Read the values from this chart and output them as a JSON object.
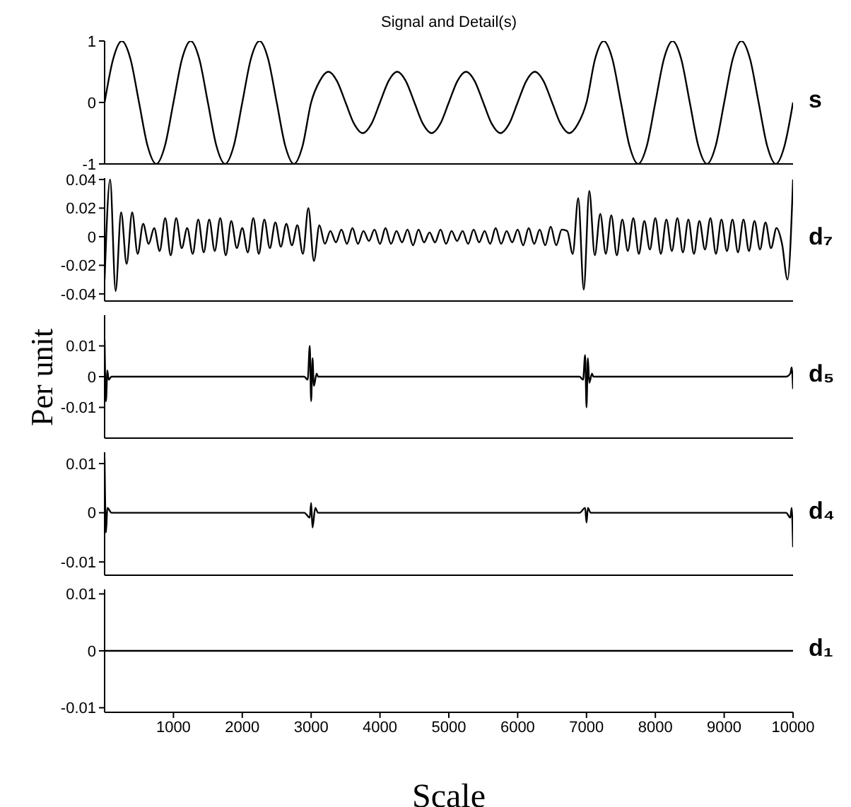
{
  "chart_data": [
    {
      "type": "line",
      "title": "Signal and Detail(s)",
      "xlim": [
        0,
        10000
      ],
      "xticks": [
        1000,
        2000,
        3000,
        4000,
        5000,
        6000,
        7000,
        8000,
        9000,
        10000
      ],
      "ylim": [
        -1,
        1
      ],
      "yticks": [
        -1,
        0,
        1
      ],
      "tick_labels": "y",
      "x": [
        0,
        125,
        250,
        375,
        500,
        625,
        750,
        875,
        1000,
        1125,
        1250,
        1375,
        1500,
        1625,
        1750,
        1875,
        2000,
        2125,
        2250,
        2375,
        2500,
        2625,
        2750,
        2875,
        3000,
        3125,
        3250,
        3375,
        3500,
        3625,
        3750,
        3875,
        4000,
        4125,
        4250,
        4375,
        4500,
        4625,
        4750,
        4875,
        5000,
        5125,
        5250,
        5375,
        5500,
        5625,
        5750,
        5875,
        6000,
        6125,
        6250,
        6375,
        6500,
        6625,
        6750,
        6875,
        7000,
        7125,
        7250,
        7375,
        7500,
        7625,
        7750,
        7875,
        8000,
        8125,
        8250,
        8375,
        8500,
        8625,
        8750,
        8875,
        9000,
        9125,
        9250,
        9375,
        9500,
        9625,
        9750,
        9875,
        10000
      ],
      "series": [
        {
          "name": "s",
          "color": "#000000",
          "values": [
            0,
            0.71,
            1,
            0.71,
            0,
            -0.71,
            -1,
            -0.71,
            0,
            0.71,
            1,
            0.71,
            0,
            -0.71,
            -1,
            -0.71,
            0,
            0.71,
            1,
            0.71,
            0,
            -0.71,
            -1,
            -0.71,
            0,
            0.35,
            0.5,
            0.35,
            0,
            -0.35,
            -0.5,
            -0.35,
            0,
            0.35,
            0.5,
            0.35,
            0,
            -0.35,
            -0.5,
            -0.35,
            0,
            0.35,
            0.5,
            0.35,
            0,
            -0.35,
            -0.5,
            -0.35,
            0,
            0.35,
            0.5,
            0.35,
            0,
            -0.35,
            -0.5,
            -0.35,
            0,
            0.71,
            1,
            0.71,
            0,
            -0.71,
            -1,
            -0.71,
            0,
            0.71,
            1,
            0.71,
            0,
            -0.71,
            -1,
            -0.71,
            0,
            0.71,
            1,
            0.71,
            0,
            -0.71,
            -1,
            -0.71,
            0
          ]
        }
      ]
    },
    {
      "type": "line",
      "xlim": [
        0,
        10000
      ],
      "xticks": [
        1000,
        2000,
        3000,
        4000,
        5000,
        6000,
        7000,
        8000,
        9000,
        10000
      ],
      "ylim": [
        -0.045,
        0.041
      ],
      "yticks": [
        -0.04,
        -0.02,
        0,
        0.02,
        0.04
      ],
      "tick_labels": "y",
      "x": [
        0,
        80,
        160,
        240,
        320,
        400,
        480,
        560,
        640,
        720,
        800,
        880,
        960,
        1040,
        1120,
        1200,
        1280,
        1360,
        1440,
        1520,
        1600,
        1680,
        1760,
        1840,
        1920,
        2000,
        2080,
        2160,
        2240,
        2320,
        2400,
        2480,
        2560,
        2640,
        2720,
        2800,
        2880,
        2960,
        3040,
        3120,
        3200,
        3280,
        3360,
        3440,
        3520,
        3600,
        3680,
        3760,
        3840,
        3920,
        4000,
        4080,
        4160,
        4240,
        4320,
        4400,
        4480,
        4560,
        4640,
        4720,
        4800,
        4880,
        4960,
        5040,
        5120,
        5200,
        5280,
        5360,
        5440,
        5520,
        5600,
        5680,
        5760,
        5840,
        5920,
        6000,
        6080,
        6160,
        6240,
        6320,
        6400,
        6480,
        6560,
        6640,
        6720,
        6800,
        6880,
        6960,
        7040,
        7120,
        7200,
        7280,
        7360,
        7440,
        7520,
        7600,
        7680,
        7760,
        7840,
        7920,
        8000,
        8080,
        8160,
        8240,
        8320,
        8400,
        8480,
        8560,
        8640,
        8720,
        8800,
        8880,
        8960,
        9040,
        9120,
        9200,
        9280,
        9360,
        9440,
        9520,
        9600,
        9680,
        9760,
        9840,
        9920,
        10000
      ],
      "series": [
        {
          "name": "d₇",
          "color": "#000000",
          "values": [
            -0.03,
            0.04,
            -0.038,
            0.017,
            -0.019,
            0.017,
            -0.012,
            0.009,
            -0.005,
            0.006,
            -0.01,
            0.013,
            -0.013,
            0.013,
            -0.008,
            0.006,
            -0.012,
            0.012,
            -0.011,
            0.012,
            -0.01,
            0.013,
            -0.013,
            0.011,
            -0.008,
            0.006,
            -0.011,
            0.013,
            -0.012,
            0.012,
            -0.008,
            0.01,
            -0.007,
            0.009,
            -0.006,
            0.008,
            -0.012,
            0.02,
            -0.017,
            0.008,
            -0.005,
            0.004,
            -0.004,
            0.005,
            -0.005,
            0.006,
            -0.005,
            0.004,
            -0.003,
            0.005,
            -0.005,
            0.006,
            -0.005,
            0.004,
            -0.004,
            0.005,
            -0.006,
            0.005,
            -0.004,
            0.003,
            -0.004,
            0.005,
            -0.005,
            0.004,
            -0.003,
            0.004,
            -0.005,
            0.005,
            -0.004,
            0.004,
            -0.005,
            0.006,
            -0.005,
            0.004,
            -0.004,
            0.005,
            -0.006,
            0.006,
            -0.005,
            0.005,
            -0.006,
            0.007,
            -0.006,
            0.005,
            0.004,
            -0.012,
            0.027,
            -0.037,
            0.032,
            -0.013,
            0.016,
            -0.012,
            0.015,
            -0.013,
            0.012,
            -0.01,
            0.013,
            -0.012,
            0.011,
            -0.009,
            0.013,
            -0.012,
            0.012,
            -0.01,
            0.013,
            -0.011,
            0.012,
            -0.012,
            0.011,
            -0.009,
            0.013,
            -0.012,
            0.012,
            -0.01,
            0.012,
            -0.011,
            0.012,
            -0.01,
            0.011,
            -0.009,
            0.01,
            -0.008,
            0.006,
            -0.005,
            -0.03,
            0.04
          ]
        }
      ]
    },
    {
      "type": "line",
      "ylabel": "Per unit",
      "xlim": [
        0,
        10000
      ],
      "xticks": [
        1000,
        2000,
        3000,
        4000,
        5000,
        6000,
        7000,
        8000,
        9000,
        10000
      ],
      "ylim": [
        -0.02,
        0.02
      ],
      "yticks": [
        -0.01,
        0,
        0.01
      ],
      "tick_labels": "y",
      "x": [
        0,
        20,
        40,
        60,
        100,
        200,
        2900,
        2950,
        2980,
        3000,
        3020,
        3040,
        3080,
        3100,
        3200,
        6900,
        6950,
        6980,
        7000,
        7020,
        7040,
        7080,
        7100,
        7200,
        9900,
        9960,
        9980,
        10000
      ],
      "series": [
        {
          "name": "d₅",
          "color": "#000000",
          "values": [
            0.012,
            -0.008,
            0.002,
            -0.001,
            0,
            0,
            0,
            -0.001,
            0.01,
            -0.008,
            0.006,
            -0.003,
            0.001,
            0,
            0,
            0,
            -0.001,
            0.007,
            -0.01,
            0.006,
            -0.002,
            0.001,
            0,
            0,
            0,
            0.001,
            0.003,
            -0.004
          ]
        }
      ]
    },
    {
      "type": "line",
      "xlim": [
        0,
        10000
      ],
      "xticks": [
        1000,
        2000,
        3000,
        4000,
        5000,
        6000,
        7000,
        8000,
        9000,
        10000
      ],
      "ylim": [
        -0.0127,
        0.0123
      ],
      "yticks": [
        -0.01,
        0,
        0.01
      ],
      "tick_labels": "y",
      "x": [
        0,
        20,
        40,
        100,
        2900,
        2980,
        3000,
        3020,
        3060,
        3100,
        6900,
        6980,
        7000,
        7020,
        7060,
        7100,
        9900,
        9960,
        9980,
        10000
      ],
      "series": [
        {
          "name": "d₄",
          "color": "#000000",
          "values": [
            0.011,
            -0.004,
            0.001,
            0,
            0,
            -0.001,
            0.002,
            -0.003,
            0.001,
            0,
            0,
            0.001,
            -0.002,
            0.001,
            0,
            0,
            0,
            -0.001,
            0.001,
            -0.007
          ]
        }
      ]
    },
    {
      "type": "line",
      "xlabel": "Scale",
      "xlim": [
        0,
        10000
      ],
      "xticks": [
        1000,
        2000,
        3000,
        4000,
        5000,
        6000,
        7000,
        8000,
        9000,
        10000
      ],
      "ylim": [
        -0.0108,
        0.0108
      ],
      "yticks": [
        -0.01,
        0,
        0.01
      ],
      "x": [
        0,
        10000
      ],
      "series": [
        {
          "name": "d₁",
          "color": "#000000",
          "values": [
            0,
            0
          ]
        }
      ]
    }
  ]
}
